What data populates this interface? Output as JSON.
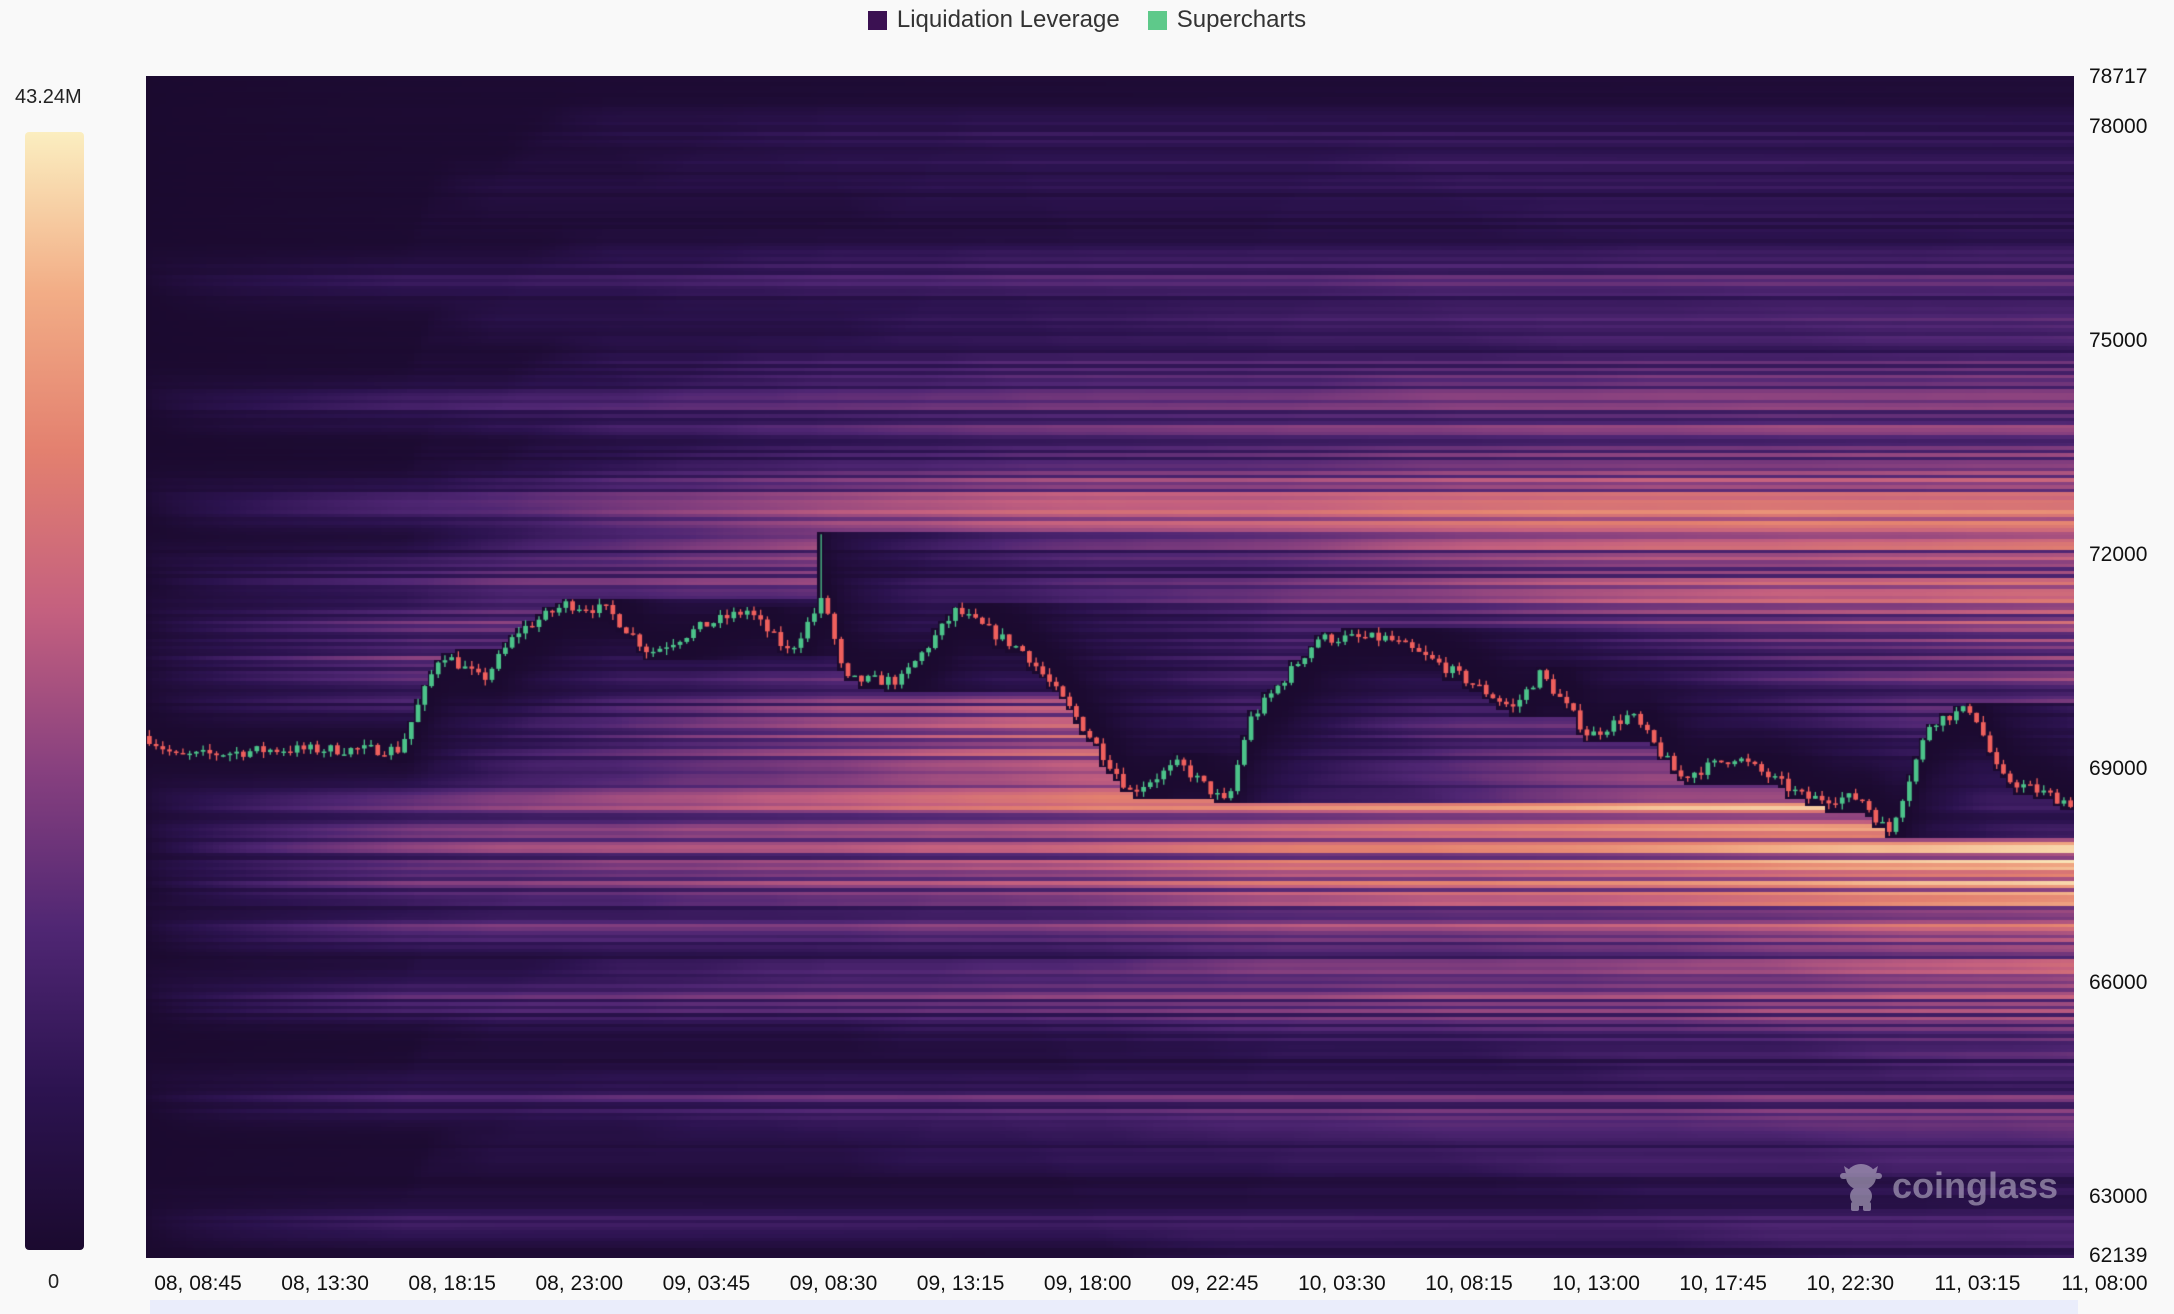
{
  "chart_data": {
    "type": "heatmap",
    "title": "",
    "legend": [
      {
        "name": "Liquidation Leverage",
        "color": "#3b1152"
      },
      {
        "name": "Supercharts",
        "color": "#5ec98a"
      }
    ],
    "legend_placement": "top-center",
    "colorbar": {
      "max_label": "43.24M",
      "min_label": "0",
      "colormap": [
        "#1b0a2f",
        "#2c1350",
        "#4f2673",
        "#87407f",
        "#c4607f",
        "#e3806f",
        "#f2ad86",
        "#fbeec0"
      ]
    },
    "y_axis": {
      "side": "right",
      "range": [
        62139,
        78717
      ],
      "ticks": [
        "78717",
        "78000",
        "75000",
        "72000",
        "69000",
        "66000",
        "63000",
        "62139"
      ]
    },
    "x_axis": {
      "ticks": [
        "08, 08:45",
        "08, 13:30",
        "08, 18:15",
        "08, 23:00",
        "09, 03:45",
        "09, 08:30",
        "09, 13:15",
        "09, 18:00",
        "09, 22:45",
        "10, 03:30",
        "10, 08:15",
        "10, 13:00",
        "10, 17:45",
        "10, 22:30",
        "11, 03:15",
        "11, 08:00"
      ]
    },
    "candle_colors": {
      "up": "#4cc38a",
      "down": "#f0605d"
    },
    "price_path": [
      [
        "08 08:45",
        69460
      ],
      [
        "08 09:53",
        69170
      ],
      [
        "08 13:31",
        69270
      ],
      [
        "08 18:11",
        69270
      ],
      [
        "08 19:44",
        70630
      ],
      [
        "08 21:17",
        70240
      ],
      [
        "08 22:35",
        70920
      ],
      [
        "09 00:23",
        71310
      ],
      [
        "09 01:57",
        71220
      ],
      [
        "09 03:30",
        70630
      ],
      [
        "09 05:35",
        71020
      ],
      [
        "09 07:08",
        71220
      ],
      [
        "09 08:41",
        70630
      ],
      [
        "09 09:59",
        71400
      ],
      [
        "09 10:45",
        70240
      ],
      [
        "09 12:50",
        70240
      ],
      [
        "09 14:54",
        71220
      ],
      [
        "09 17:29",
        70630
      ],
      [
        "09 19:18",
        69760
      ],
      [
        "09 21:23",
        68680
      ],
      [
        "09 23:12",
        69070
      ],
      [
        "10 01:00",
        68490
      ],
      [
        "10 01:47",
        69660
      ],
      [
        "10 04:22",
        70830
      ],
      [
        "10 06:57",
        70830
      ],
      [
        "10 09:02",
        70440
      ],
      [
        "10 11:37",
        69850
      ],
      [
        "10 12:39",
        70340
      ],
      [
        "10 14:28",
        69460
      ],
      [
        "10 16:01",
        69760
      ],
      [
        "10 17:50",
        68880
      ],
      [
        "10 19:54",
        69170
      ],
      [
        "10 22:30",
        68590
      ],
      [
        "11 00:34",
        68590
      ],
      [
        "11 01:36",
        68100
      ],
      [
        "11 03:10",
        69660
      ],
      [
        "11 04:43",
        69850
      ],
      [
        "11 05:45",
        68880
      ],
      [
        "11 08:36",
        68490
      ]
    ],
    "spike_high": [
      "09 09:59",
      72290
    ],
    "watermark": "coinglass"
  }
}
